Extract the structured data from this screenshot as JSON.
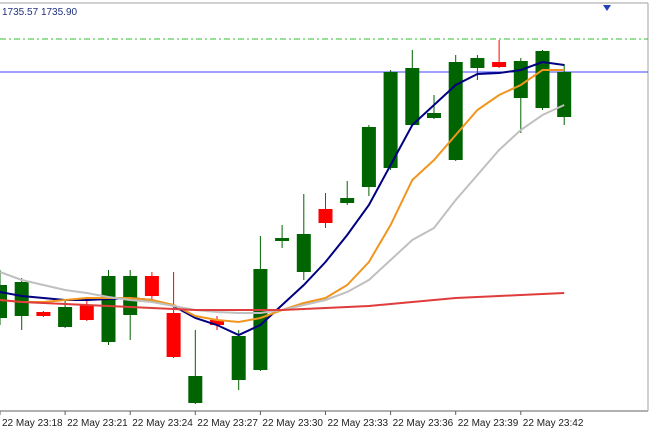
{
  "chart_data": {
    "type": "candlestick",
    "categories": [
      "22 May 23:18",
      null,
      null,
      "22 May 23:21",
      null,
      null,
      "22 May 23:24",
      null,
      null,
      "22 May 23:27",
      null,
      null,
      "22 May 23:30",
      null,
      null,
      "22 May 23:33",
      null,
      null,
      "22 May 23:36",
      null,
      null,
      "22 May 23:39",
      null,
      null,
      "22 May 23:42",
      null,
      null
    ],
    "open": [
      1733.11,
      1733.13,
      1733.17,
      1733.02,
      1733.24,
      1732.87,
      1733.14,
      1733.53,
      1733.16,
      1732.26,
      1733.09,
      1732.49,
      1732.59,
      1733.88,
      1733.57,
      1734.2,
      1734.26,
      1734.42,
      1734.61,
      1735.04,
      1735.11,
      1734.69,
      1735.61,
      1735.67,
      1735.31,
      1735.21,
      1735.12
    ],
    "high": [
      1733.59,
      1733.51,
      1733.18,
      1733.29,
      1733.32,
      1733.59,
      1733.59,
      1733.57,
      1733.57,
      1732.99,
      1733.13,
      1732.99,
      1733.93,
      1734.04,
      1734.35,
      1734.36,
      1734.48,
      1735.04,
      1735.59,
      1735.79,
      1735.34,
      1735.74,
      1735.74,
      1735.89,
      1735.71,
      1735.79,
      1735.65
    ],
    "low": [
      1733.04,
      1732.99,
      1733.12,
      1733.01,
      1733.08,
      1732.84,
      1732.89,
      1733.29,
      1732.71,
      1732.25,
      1732.99,
      1732.39,
      1732.58,
      1733.81,
      1733.49,
      1734.01,
      1734.24,
      1734.33,
      1734.59,
      1735.03,
      1735.1,
      1734.68,
      1735.49,
      1735.61,
      1734.96,
      1735.19,
      1735.04
    ],
    "close": [
      1733.44,
      1733.47,
      1733.13,
      1733.22,
      1733.09,
      1733.53,
      1733.53,
      1733.33,
      1732.72,
      1732.53,
      1733.04,
      1732.93,
      1733.6,
      1733.91,
      1733.95,
      1734.06,
      1734.31,
      1735.02,
      1735.57,
      1735.61,
      1735.16,
      1735.67,
      1735.71,
      1735.62,
      1735.68,
      1735.78,
      1735.57
    ],
    "up_color": "#006400",
    "down_color": "#ff0000",
    "moving_averages": [
      {
        "color": "#000080",
        "values": [
          1733.37,
          1733.33,
          1733.31,
          1733.29,
          1733.29,
          1733.3,
          1733.31,
          1733.29,
          1733.23,
          1733.11,
          1733.04,
          1732.94,
          1733.04,
          1733.24,
          1733.44,
          1733.67,
          1733.94,
          1734.24,
          1734.64,
          1735.04,
          1735.24,
          1735.44,
          1735.55,
          1735.56,
          1735.59,
          1735.67,
          1735.64
        ]
      },
      {
        "color": "#f0961e",
        "values": [
          1733.29,
          1733.27,
          1733.27,
          1733.29,
          1733.31,
          1733.31,
          1733.31,
          1733.29,
          1733.24,
          1733.13,
          1733.09,
          1733.07,
          1733.11,
          1733.19,
          1733.26,
          1733.31,
          1733.44,
          1733.67,
          1734.04,
          1734.49,
          1734.69,
          1734.94,
          1735.19,
          1735.34,
          1735.44,
          1735.59,
          1735.59
        ]
      },
      {
        "color": "#c0c0c0",
        "values": [
          1733.57,
          1733.49,
          1733.44,
          1733.39,
          1733.36,
          1733.32,
          1733.29,
          1733.27,
          1733.23,
          1733.19,
          1733.17,
          1733.16,
          1733.16,
          1733.19,
          1733.24,
          1733.29,
          1733.37,
          1733.49,
          1733.69,
          1733.89,
          1734.01,
          1734.29,
          1734.54,
          1734.79,
          1734.99,
          1735.14,
          1735.24
        ]
      },
      {
        "color": "#e03c3c",
        "values": [
          1733.29,
          1733.27,
          1733.26,
          1733.25,
          1733.24,
          1733.23,
          1733.22,
          1733.21,
          1733.2,
          1733.19,
          1733.19,
          1733.19,
          1733.19,
          1733.19,
          1733.2,
          1733.21,
          1733.22,
          1733.23,
          1733.25,
          1733.27,
          1733.29,
          1733.31,
          1733.32,
          1733.33,
          1733.34,
          1733.35,
          1733.36
        ]
      }
    ],
    "bid": 1735.57,
    "ask": {
      "value": 1735.9,
      "label": "1735.90"
    },
    "bid_color": "#4040ff",
    "ask_color": "#30c030",
    "ylim": [
      1732.19,
      1736.29
    ]
  }
}
